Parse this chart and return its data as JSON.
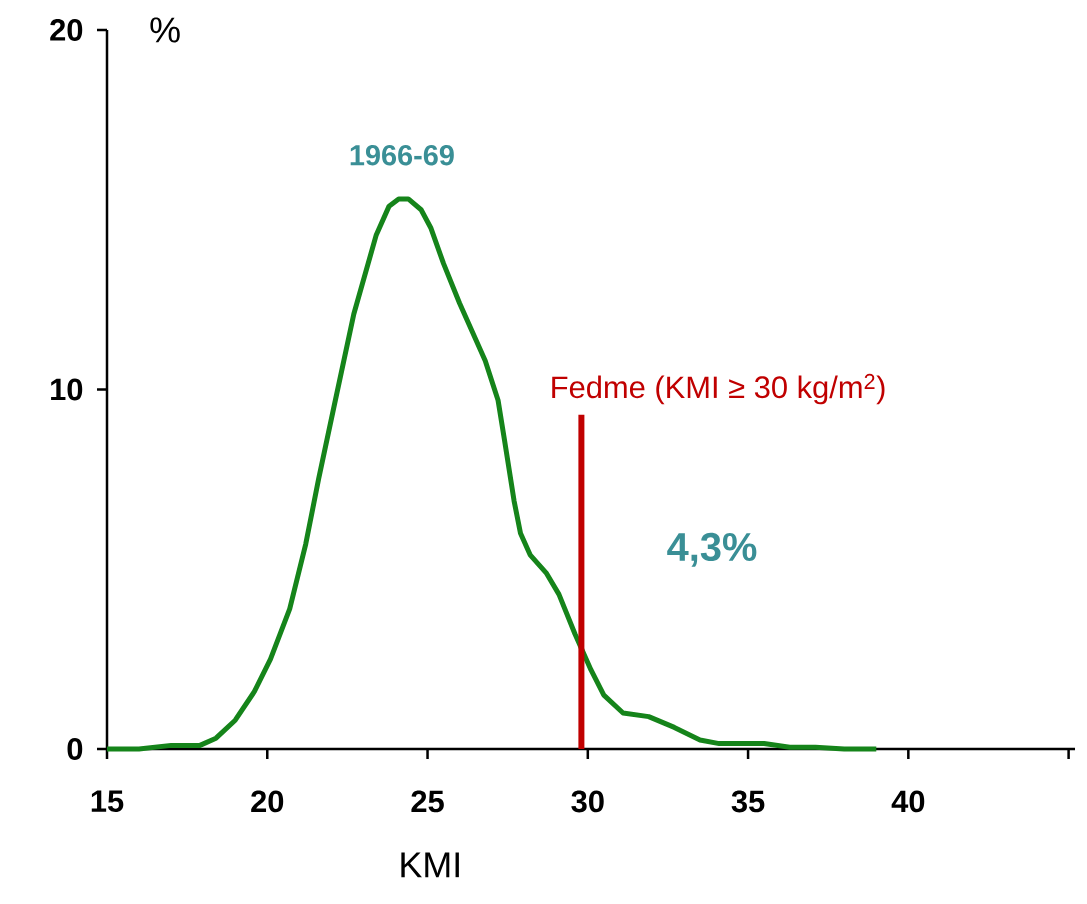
{
  "chart_data": {
    "type": "line",
    "xlabel": "KMI",
    "ylabel": "%",
    "x": [
      15,
      16,
      17,
      17.9,
      18.4,
      19.0,
      19.6,
      20.1,
      20.7,
      21.2,
      21.6,
      22.1,
      22.7,
      23.4,
      23.8,
      24.1,
      24.4,
      24.8,
      25.1,
      25.5,
      26.0,
      26.8,
      27.2,
      27.4,
      27.7,
      27.9,
      28.2,
      28.7,
      29.1,
      29.6,
      30.1,
      30.5,
      31.1,
      31.9,
      32.7,
      33.5,
      34.1,
      35.5,
      36.3,
      37.1,
      38.0,
      39.0
    ],
    "series": [
      {
        "color": "#15841a",
        "values": [
          0,
          0,
          0.1,
          0.1,
          0.3,
          0.8,
          1.6,
          2.5,
          3.9,
          5.7,
          7.5,
          9.6,
          12.1,
          14.3,
          15.1,
          15.3,
          15.3,
          15.0,
          14.5,
          13.5,
          12.4,
          10.8,
          9.7,
          8.6,
          6.9,
          6.0,
          5.4,
          4.9,
          4.3,
          3.2,
          2.2,
          1.5,
          1.0,
          0.9,
          0.6,
          0.25,
          0.15,
          0.15,
          0.05,
          0.05,
          0,
          0
        ]
      }
    ],
    "line_style": "solid",
    "xlim": [
      15,
      45.2
    ],
    "xticks": [
      15,
      20,
      25,
      30,
      35,
      40,
      {
        "value": 45,
        "label": null
      }
    ],
    "ylim": [
      0,
      20
    ],
    "yticks": [
      0,
      10,
      20
    ],
    "ref_lines": [
      {
        "axis": "x",
        "value": 29.8,
        "label": "Fedme (KMI ≥ 30 kg/m$^{2}$)",
        "color": "#c00000"
      }
    ],
    "annotations": [
      {
        "text": "1966-69",
        "x": 24.2,
        "y": 15.3
      },
      "4,3%"
    ]
  }
}
